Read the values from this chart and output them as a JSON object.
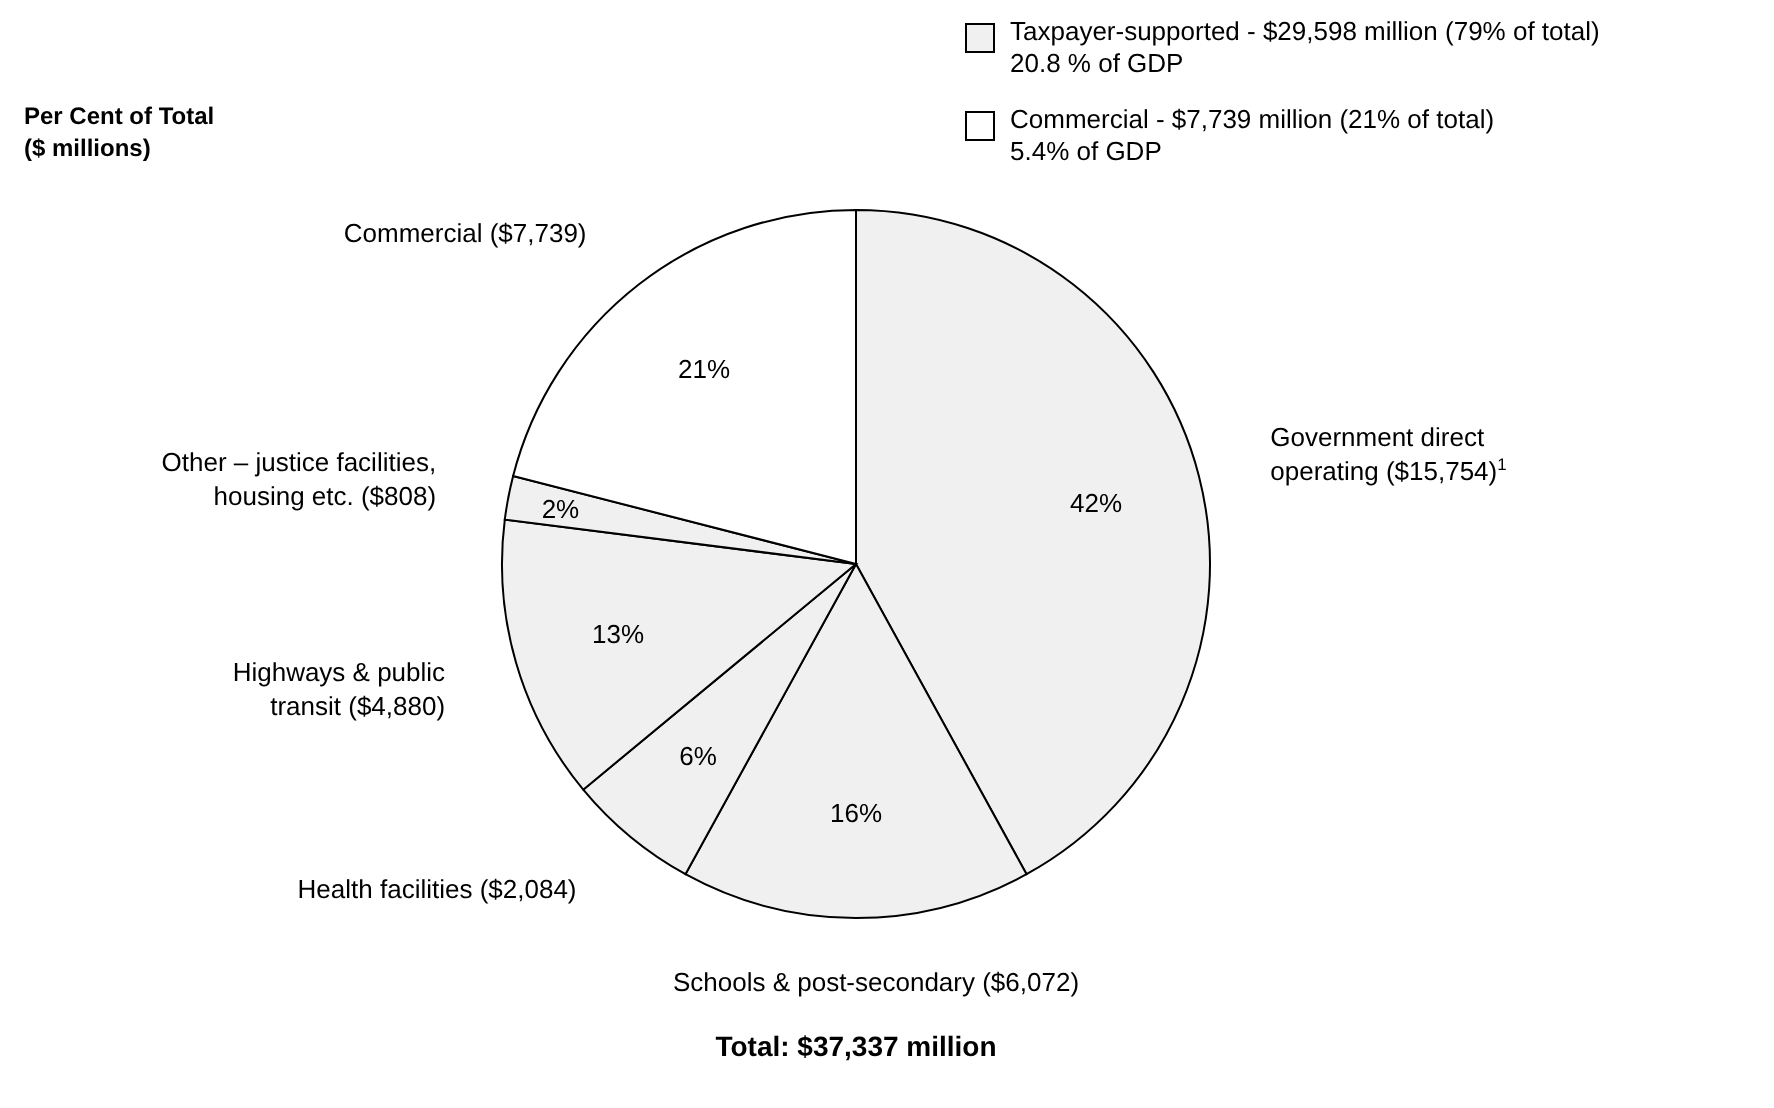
{
  "chart_data": {
    "type": "pie",
    "subtitle": "Per Cent of Total\n($ millions)",
    "categories": [
      "Government direct\noperating  ($15,754)$^{1}$",
      "Schools & post-secondary  ($6,072)",
      "Health facilities  ($2,084)",
      "Highways & public\ntransit  ($4,880)",
      "Other – justice facilities,\nhousing etc.  ($808)",
      "Commercial  ($7,739)"
    ],
    "values": [
      42,
      16,
      6,
      13,
      2,
      21
    ],
    "value_labels": [
      "42%",
      "16%",
      "6%",
      "13%",
      "2%",
      "21%"
    ],
    "colors": [
      "#f0f0f0",
      "#f0f0f0",
      "#f0f0f0",
      "#f0f0f0",
      "#f0f0f0",
      "#ffffff"
    ],
    "annotations": [
      "Taxpayer-supported - $29,598 million (79% of total)\n20.8 % of GDP",
      "Commercial - $7,739 million (21% of total)\n5.4% of GDP",
      "Total: $37,337 million"
    ]
  }
}
